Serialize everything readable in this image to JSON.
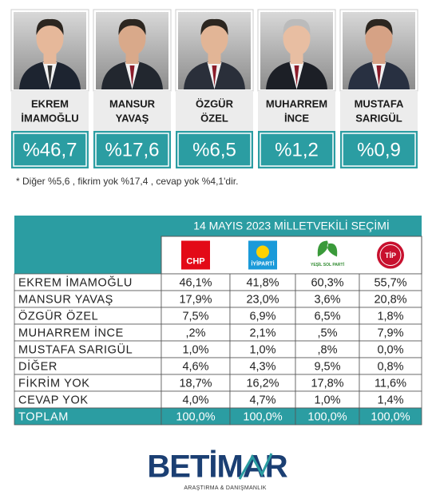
{
  "candidates": [
    {
      "name": [
        "EKREM",
        "İMAMOĞLU"
      ],
      "percent": "%46,7"
    },
    {
      "name": [
        "MANSUR",
        "YAVAŞ"
      ],
      "percent": "%17,6"
    },
    {
      "name": [
        "ÖZGÜR",
        "ÖZEL"
      ],
      "percent": "%6,5"
    },
    {
      "name": [
        "MUHARREM",
        "İNCE"
      ],
      "percent": "%1,2"
    },
    {
      "name": [
        "MUSTAFA",
        "SARIGÜL"
      ],
      "percent": "%0,9"
    }
  ],
  "note": "* Diğer %5,6 , fikrim yok %17,4 , cevap yok %4,1'dir.",
  "table": {
    "title": "14 MAYIS 2023 MİLLETVEKİLİ SEÇİMİ",
    "parties": [
      "CHP",
      "İYİPARTİ",
      "YEŞİL SOL PARTİ",
      "TİP"
    ],
    "rows": [
      {
        "label": "EKREM İMAMOĞLU",
        "cells": [
          "46,1%",
          "41,8%",
          "60,3%",
          "55,7%"
        ]
      },
      {
        "label": "MANSUR YAVAŞ",
        "cells": [
          "17,9%",
          "23,0%",
          "3,6%",
          "20,8%"
        ]
      },
      {
        "label": "ÖZGÜR ÖZEL",
        "cells": [
          "7,5%",
          "6,9%",
          "6,5%",
          "1,8%"
        ]
      },
      {
        "label": "MUHARREM İNCE",
        "cells": [
          ",2%",
          "2,1%",
          ",5%",
          "7,9%"
        ]
      },
      {
        "label": "MUSTAFA SARIGÜL",
        "cells": [
          "1,0%",
          "1,0%",
          ",8%",
          "0,0%"
        ]
      },
      {
        "label": "DİĞER",
        "cells": [
          "4,6%",
          "4,3%",
          "9,5%",
          "0,8%"
        ]
      },
      {
        "label": "FİKRİM YOK",
        "cells": [
          "18,7%",
          "16,2%",
          "17,8%",
          "11,6%"
        ]
      },
      {
        "label": "CEVAP YOK",
        "cells": [
          "4,0%",
          "4,7%",
          "1,0%",
          "1,4%"
        ]
      },
      {
        "label": "TOPLAM",
        "cells": [
          "100,0%",
          "100,0%",
          "100,0%",
          "100,0%"
        ]
      }
    ]
  },
  "logo": {
    "brand": "BETİMAR",
    "tagline": "ARAŞTIRMA & DANIŞMANLIK"
  }
}
